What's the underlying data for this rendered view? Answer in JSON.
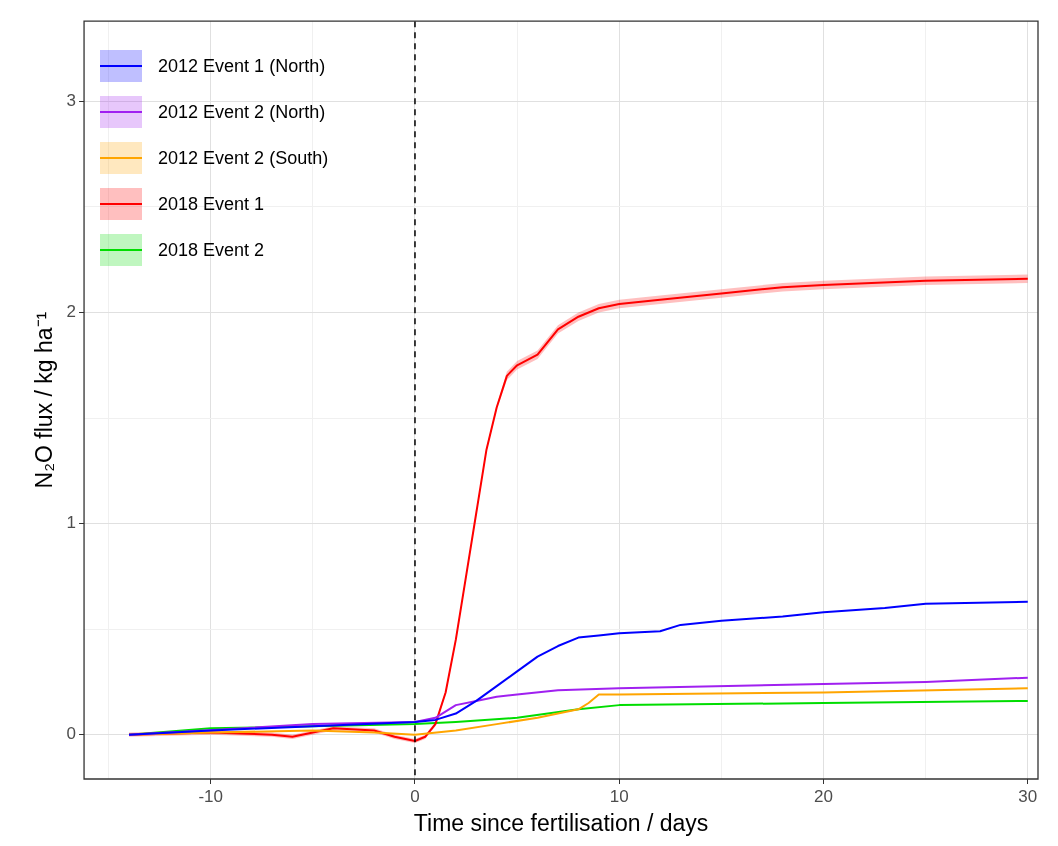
{
  "chart_data": {
    "type": "line",
    "xlabel": "Time since fertilisation / days",
    "ylabel": "N₂O flux / kg ha⁻¹",
    "xlim": [
      -16.2,
      30.5
    ],
    "ylim": [
      -0.21,
      3.38
    ],
    "xticks": [
      {
        "value": -15,
        "label": null
      },
      -10,
      {
        "value": -5,
        "label": null
      },
      0,
      {
        "value": 5,
        "label": null
      },
      10,
      {
        "value": 15,
        "label": null
      },
      20,
      {
        "value": 25,
        "label": null
      },
      30
    ],
    "yticks": [
      0,
      {
        "value": 0.5,
        "label": null
      },
      1,
      {
        "value": 1.5,
        "label": null
      },
      2,
      {
        "value": 2.5,
        "label": null
      },
      3
    ],
    "grid": true,
    "legend": "top left",
    "marker": "none",
    "line_style": "solid",
    "ref_lines": [
      {
        "axis": "x",
        "value": 0,
        "label": null,
        "color": "#000000",
        "line_style": "dashed"
      }
    ],
    "series": [
      {
        "name": "2012 Event 1 (North)",
        "color": "#0000ff",
        "x": [
          -14,
          -10,
          -5,
          0,
          1,
          2,
          3,
          4,
          5,
          6,
          7,
          8,
          9,
          10,
          12,
          13,
          15,
          18,
          20,
          23,
          25,
          30
        ],
        "values": [
          0,
          0.02,
          0.04,
          0.06,
          0.07,
          0.1,
          0.16,
          0.23,
          0.3,
          0.37,
          0.42,
          0.46,
          0.47,
          0.48,
          0.49,
          0.52,
          0.54,
          0.56,
          0.58,
          0.6,
          0.62,
          0.63
        ]
      },
      {
        "name": "2012 Event 2 (North)",
        "color": "#a020f0",
        "x": [
          -14,
          -5,
          0,
          1,
          2,
          3,
          4,
          5,
          7,
          10,
          20,
          25,
          30
        ],
        "values": [
          0,
          0.05,
          0.06,
          0.08,
          0.14,
          0.16,
          0.18,
          0.19,
          0.21,
          0.22,
          0.24,
          0.25,
          0.27
        ]
      },
      {
        "name": "2012 Event 2 (South)",
        "color": "#ffa500",
        "x": [
          -14,
          -10,
          -5,
          -2,
          0,
          2,
          4,
          6,
          8,
          8.5,
          9,
          10,
          20,
          30
        ],
        "values": [
          0,
          0.01,
          0.02,
          0.01,
          0,
          0.02,
          0.05,
          0.08,
          0.12,
          0.15,
          0.19,
          0.19,
          0.2,
          0.22
        ]
      },
      {
        "name": "2018 Event 1",
        "color": "#ff0000",
        "x": [
          -14,
          -10,
          -7,
          -6,
          -4,
          -2,
          -1,
          0,
          0.5,
          1,
          1.5,
          2,
          2.5,
          3,
          3.5,
          4,
          4.5,
          5,
          6,
          7,
          8,
          9,
          10,
          12,
          15,
          18,
          20,
          25,
          30
        ],
        "values": [
          0,
          0.01,
          0,
          -0.01,
          0.03,
          0.02,
          -0.01,
          -0.03,
          -0.01,
          0.05,
          0.2,
          0.45,
          0.75,
          1.05,
          1.35,
          1.55,
          1.7,
          1.75,
          1.8,
          1.92,
          1.98,
          2.02,
          2.04,
          2.06,
          2.09,
          2.12,
          2.13,
          2.15,
          2.16
        ],
        "lower": [
          -0.01,
          0,
          -0.01,
          -0.02,
          0.02,
          0.01,
          -0.02,
          -0.04,
          -0.02,
          0.04,
          0.19,
          0.44,
          0.74,
          1.04,
          1.34,
          1.54,
          1.68,
          1.73,
          1.78,
          1.9,
          1.96,
          2,
          2.02,
          2.04,
          2.07,
          2.1,
          2.11,
          2.13,
          2.14
        ],
        "upper": [
          0.01,
          0.02,
          0.01,
          0,
          0.04,
          0.03,
          0,
          -0.02,
          0,
          0.06,
          0.21,
          0.46,
          0.76,
          1.06,
          1.36,
          1.56,
          1.72,
          1.77,
          1.82,
          1.94,
          2,
          2.04,
          2.06,
          2.08,
          2.11,
          2.14,
          2.15,
          2.17,
          2.18
        ]
      },
      {
        "name": "2018 Event 2",
        "color": "#00dd00",
        "x": [
          -14,
          -10,
          -5,
          0,
          2,
          5,
          8,
          10,
          20,
          30
        ],
        "values": [
          0,
          0.03,
          0.04,
          0.05,
          0.06,
          0.08,
          0.12,
          0.14,
          0.15,
          0.16
        ]
      }
    ]
  }
}
